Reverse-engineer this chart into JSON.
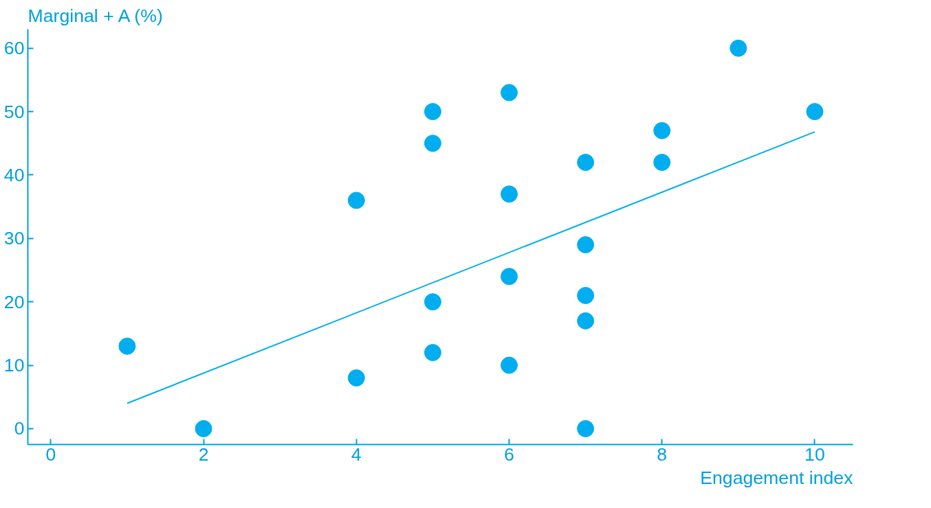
{
  "chart_data": {
    "type": "scatter",
    "xlabel": "Engagement index",
    "ylabel": "Marginal + A (%)",
    "xlim": [
      -0.3,
      10.5
    ],
    "ylim": [
      -2.5,
      63
    ],
    "xticks": [
      0,
      2,
      4,
      6,
      8,
      10
    ],
    "yticks": [
      0,
      10,
      20,
      30,
      40,
      50,
      60
    ],
    "grid": false,
    "series": [
      {
        "color": "#00aeef",
        "marker": "circle",
        "x": [
          1,
          2,
          4,
          4,
          5,
          5,
          5,
          5,
          6,
          6,
          6,
          6,
          7,
          7,
          7,
          7,
          7,
          8,
          8,
          9,
          10
        ],
        "values": [
          13,
          0,
          36,
          8,
          50,
          45,
          20,
          12,
          53,
          37,
          24,
          10,
          42,
          29,
          21,
          17,
          0,
          47,
          42,
          60,
          50
        ]
      },
      {
        "type": "line",
        "color": "#00aeef",
        "marker": "none",
        "x": [
          1,
          10
        ],
        "values": [
          4,
          46.8
        ]
      }
    ]
  }
}
